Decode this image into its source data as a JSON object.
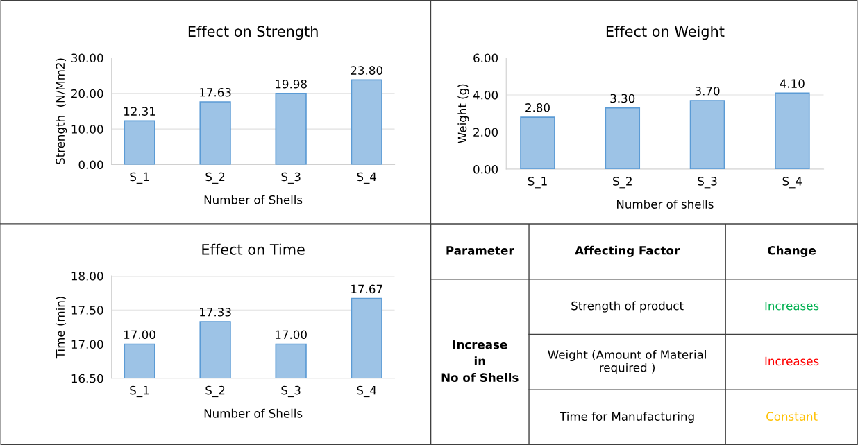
{
  "chart_data": [
    {
      "type": "bar",
      "title": "Effect on Strength",
      "xlabel": "Number of Shells",
      "ylabel": "Strength  (N/Mm2)",
      "categories": [
        "S_1",
        "S_2",
        "S_3",
        "S_4"
      ],
      "values": [
        12.31,
        17.63,
        19.98,
        23.8
      ],
      "value_labels": [
        "12.31",
        "17.63",
        "19.98",
        "23.80"
      ],
      "color": "#9dc3e6",
      "ylim": [
        0,
        30
      ],
      "yticks": [
        {
          "value": 0,
          "label": "0.00"
        },
        {
          "value": 10,
          "label": "10.00"
        },
        {
          "value": 20,
          "label": "20.00"
        },
        {
          "value": 30,
          "label": "30.00"
        }
      ],
      "grid": "y"
    },
    {
      "type": "bar",
      "title": "Effect on Weight",
      "xlabel": "Number of shells",
      "ylabel": "Weight (g)",
      "categories": [
        "S_1",
        "S_2",
        "S_3",
        "S_4"
      ],
      "values": [
        2.8,
        3.3,
        3.7,
        4.1
      ],
      "value_labels": [
        "2.80",
        "3.30",
        "3.70",
        "4.10"
      ],
      "color": "#9dc3e6",
      "ylim": [
        0,
        6
      ],
      "yticks": [
        {
          "value": 0,
          "label": "0.00"
        },
        {
          "value": 2,
          "label": "2.00"
        },
        {
          "value": 4,
          "label": "4.00"
        },
        {
          "value": 6,
          "label": "6.00"
        }
      ],
      "grid": "y"
    },
    {
      "type": "bar",
      "title": "Effect on Time",
      "xlabel": "Number of Shells",
      "ylabel": "Time (min)",
      "categories": [
        "S_1",
        "S_2",
        "S_3",
        "S_4"
      ],
      "values": [
        17.0,
        17.33,
        17.0,
        17.67
      ],
      "value_labels": [
        "17.00",
        "17.33",
        "17.00",
        "17.67"
      ],
      "color": "#9dc3e6",
      "ylim": [
        16.5,
        18
      ],
      "yticks": [
        {
          "value": 16.5,
          "label": "16.50"
        },
        {
          "value": 17,
          "label": "17.00"
        },
        {
          "value": 17.5,
          "label": "17.50"
        },
        {
          "value": 18,
          "label": "18.00"
        }
      ],
      "grid": "y"
    },
    {
      "type": "other",
      "annotations": [
        "Parameter",
        "Affecting Factor",
        "Change",
        "Increase\nin\nNo of Shells",
        "Strength of product",
        "Increases",
        "Weight (Amount of Material\nrequired )",
        "Increases",
        "Time for Manufacturing",
        "Constant"
      ],
      "colors": [
        null,
        null,
        null,
        null,
        null,
        "#00b050",
        null,
        "#ff0000",
        null,
        "#ffc000"
      ]
    }
  ]
}
